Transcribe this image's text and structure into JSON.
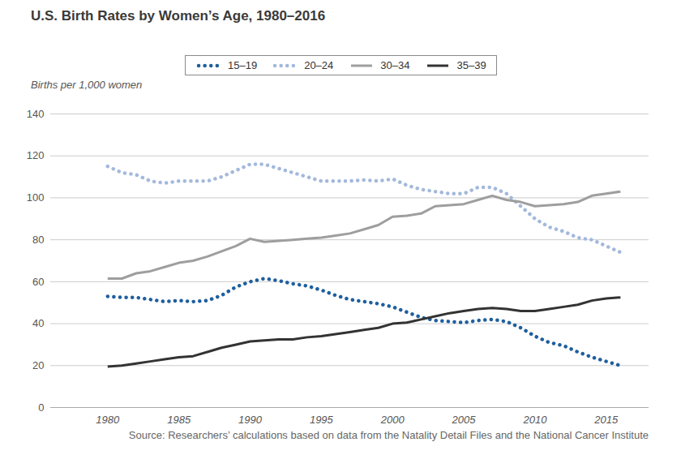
{
  "chart_data": {
    "type": "line",
    "title": "U.S. Birth Rates by Women’s Age, 1980–2016",
    "y_label": "Births per 1,000 women",
    "source": "Source: Researchers’ calculations based on data from the Natality Detail Files and the National Cancer Institute",
    "x": [
      1980,
      1981,
      1982,
      1983,
      1984,
      1985,
      1986,
      1987,
      1988,
      1989,
      1990,
      1991,
      1992,
      1993,
      1994,
      1995,
      1996,
      1997,
      1998,
      1999,
      2000,
      2001,
      2002,
      2003,
      2004,
      2005,
      2006,
      2007,
      2008,
      2009,
      2010,
      2011,
      2012,
      2013,
      2014,
      2015,
      2016
    ],
    "series": [
      {
        "name": "15–19",
        "color": "#1f5f9e",
        "line_style": "dotted",
        "values": [
          53,
          52.5,
          52.5,
          51.5,
          50.5,
          51,
          50.5,
          51,
          53.5,
          57.5,
          60,
          61.5,
          60.5,
          59,
          58,
          56,
          53.5,
          51.5,
          50.5,
          49.5,
          48,
          45.5,
          43,
          41.5,
          41,
          40.5,
          41.5,
          42,
          41,
          38,
          34,
          31,
          29.5,
          26.5,
          24,
          22,
          20
        ]
      },
      {
        "name": "20–24",
        "color": "#a3b9dc",
        "line_style": "dotted",
        "values": [
          115,
          112,
          111,
          108,
          107,
          108,
          108,
          108,
          110,
          113,
          116,
          116,
          114,
          112,
          110,
          108,
          108,
          108,
          108.5,
          108,
          109,
          106,
          104,
          103,
          102,
          102,
          105,
          105,
          102,
          96,
          90,
          86,
          84,
          81,
          80,
          77,
          74
        ]
      },
      {
        "name": "30–34",
        "color": "#9e9e9e",
        "line_style": "solid",
        "values": [
          61.5,
          61.5,
          64,
          65,
          67,
          69,
          70,
          72,
          74.5,
          77,
          80.5,
          79,
          79.5,
          80,
          80.5,
          81,
          82,
          83,
          85,
          87,
          91,
          91.5,
          92.5,
          96,
          96.5,
          97,
          99,
          101,
          99,
          98,
          96,
          96.5,
          97,
          98,
          101,
          102,
          103
        ]
      },
      {
        "name": "35–39",
        "color": "#333333",
        "line_style": "solid",
        "values": [
          19.5,
          20,
          21,
          22,
          23,
          24,
          24.5,
          26.5,
          28.5,
          30,
          31.5,
          32,
          32.5,
          32.5,
          33.5,
          34,
          35,
          36,
          37,
          38,
          40,
          40.5,
          42,
          43.5,
          45,
          46,
          47,
          47.5,
          47,
          46,
          46,
          47,
          48,
          49,
          51,
          52,
          52.5
        ]
      }
    ],
    "xlim": [
      1976,
      2018
    ],
    "xticks": [
      1980,
      1985,
      1990,
      1995,
      2000,
      2005,
      2010,
      2015
    ],
    "ylim": [
      0,
      140
    ],
    "yticks": [
      0,
      20,
      40,
      60,
      80,
      100,
      120,
      140
    ],
    "grid": true,
    "legend": "top"
  }
}
